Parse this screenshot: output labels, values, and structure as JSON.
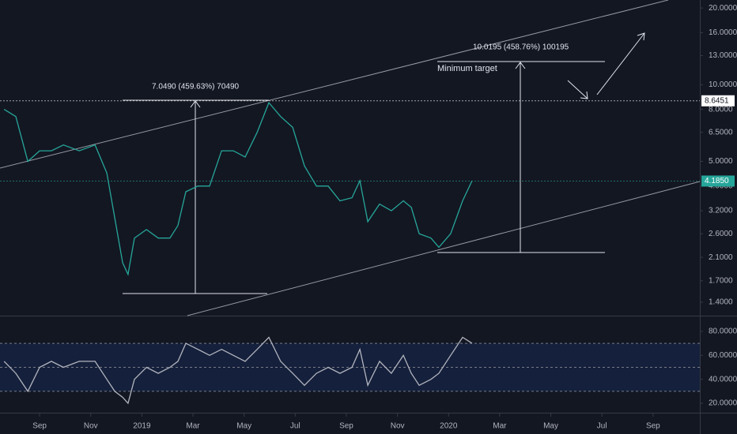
{
  "chart_data": [
    {
      "type": "line",
      "log_scale": true,
      "color": "#26a69a",
      "x": [
        -1.39,
        -0.93,
        -0.46,
        0,
        0.46,
        0.93,
        1.55,
        2.17,
        2.63,
        2.94,
        3.25,
        3.46,
        3.71,
        4.18,
        4.64,
        5.1,
        5.41,
        5.72,
        6.19,
        6.65,
        7.12,
        7.58,
        8.04,
        8.51,
        8.97,
        9.43,
        9.9,
        10.36,
        10.83,
        11.29,
        11.75,
        12.22,
        12.53,
        12.84,
        13.3,
        13.76,
        14.23,
        14.54,
        14.85,
        15.31,
        15.62,
        16.08,
        16.55,
        16.92
      ],
      "values": [
        8.0,
        7.5,
        5.0,
        5.5,
        5.5,
        5.8,
        5.5,
        5.8,
        4.5,
        3.0,
        2.0,
        1.8,
        2.5,
        2.7,
        2.5,
        2.5,
        2.8,
        3.8,
        4.0,
        4.0,
        5.5,
        5.5,
        5.2,
        6.5,
        8.5,
        7.5,
        6.8,
        4.8,
        4.0,
        4.0,
        3.5,
        3.6,
        4.2,
        2.9,
        3.4,
        3.2,
        3.5,
        3.3,
        2.6,
        2.5,
        2.3,
        2.6,
        3.5,
        4.2
      ],
      "xlim": [
        -1.55,
        25.83
      ],
      "xticks": [
        {
          "value": 0,
          "label": "Sep"
        },
        {
          "value": 2,
          "label": "Nov"
        },
        {
          "value": 4,
          "label": "2019"
        },
        {
          "value": 6,
          "label": "Mar"
        },
        {
          "value": 8,
          "label": "May"
        },
        {
          "value": 10,
          "label": "Jul"
        },
        {
          "value": 12,
          "label": "Sep"
        },
        {
          "value": 14,
          "label": "Nov"
        },
        {
          "value": 16,
          "label": "2020"
        },
        {
          "value": 18,
          "label": "Mar"
        },
        {
          "value": 20,
          "label": "May"
        },
        {
          "value": 22,
          "label": "Jul"
        },
        {
          "value": 24,
          "label": "Sep"
        }
      ],
      "ylim": [
        1.24,
        21.5
      ],
      "yticks": [
        {
          "value": 20,
          "label": "20.0000"
        },
        {
          "value": 16,
          "label": "16.0000"
        },
        {
          "value": 13,
          "label": "13.0000"
        },
        {
          "value": 10,
          "label": "10.0000"
        },
        {
          "value": 8,
          "label": "8.0000"
        },
        {
          "value": 6.5,
          "label": "6.5000"
        },
        {
          "value": 5,
          "label": "5.0000"
        },
        {
          "value": 4,
          "label": "4.0000"
        },
        {
          "value": 3.2,
          "label": "3.2000"
        },
        {
          "value": 2.6,
          "label": "2.6000"
        },
        {
          "value": 2.1,
          "label": "2.1000"
        },
        {
          "value": 1.7,
          "label": "1.7000"
        },
        {
          "value": 1.4,
          "label": "1.4000"
        }
      ],
      "price_labels": [
        {
          "value": 8.6451,
          "color": "#ffffff"
        },
        {
          "value": 4.185,
          "label": "4.1850",
          "color": "#26a69a"
        }
      ],
      "annotations": [
        "7.0490 (459.63%) 70490",
        "10.0195 (458.76%) 100195",
        "Minimum target"
      ]
    },
    {
      "type": "line",
      "color": "#b2b5be",
      "x": [
        -1.39,
        -0.93,
        -0.46,
        0,
        0.46,
        0.93,
        1.55,
        2.17,
        2.63,
        2.94,
        3.25,
        3.46,
        3.71,
        4.18,
        4.64,
        5.1,
        5.41,
        5.72,
        6.19,
        6.65,
        7.12,
        7.58,
        8.04,
        8.51,
        8.97,
        9.43,
        9.9,
        10.36,
        10.83,
        11.29,
        11.75,
        12.22,
        12.53,
        12.84,
        13.3,
        13.76,
        14.23,
        14.54,
        14.85,
        15.31,
        15.62,
        16.08,
        16.55,
        16.92
      ],
      "values": [
        55,
        45,
        30,
        50,
        55,
        50,
        55,
        55,
        40,
        30,
        25,
        20,
        40,
        50,
        45,
        50,
        55,
        70,
        65,
        60,
        65,
        60,
        55,
        65,
        75,
        55,
        45,
        35,
        45,
        50,
        45,
        50,
        65,
        35,
        55,
        45,
        60,
        45,
        35,
        40,
        45,
        60,
        75,
        70
      ],
      "xlim": [
        -1.55,
        25.83
      ],
      "ylim": [
        12.8,
        91.8
      ],
      "yticks": [
        {
          "value": 80,
          "label": "80.0000"
        },
        {
          "value": 60,
          "label": "60.0000"
        },
        {
          "value": 40,
          "label": "40.0000"
        },
        {
          "value": 20,
          "label": "20.0000"
        }
      ],
      "levels": [
        70,
        50,
        30
      ]
    }
  ]
}
